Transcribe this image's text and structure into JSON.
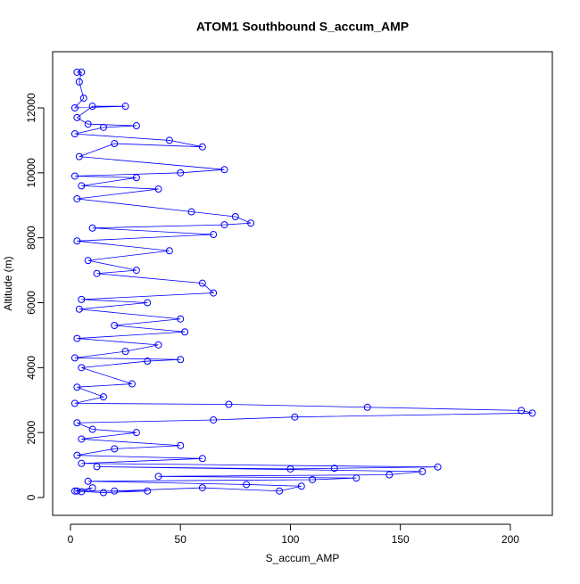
{
  "chart_data": {
    "type": "line",
    "title": "ATOM1 Southbound S_accum_AMP",
    "x_label": "S_accum_AMP",
    "y_label": "Altitude (m)",
    "xlim": [
      -8.1,
      219.1
    ],
    "ylim": [
      -549,
      13730
    ],
    "xticks": [
      0,
      50,
      100,
      150,
      200
    ],
    "yticks": [
      0,
      2000,
      4000,
      6000,
      8000,
      10000,
      12000
    ],
    "color": "#0000ff",
    "x": [
      3,
      5,
      4,
      6,
      2,
      25,
      10,
      3,
      8,
      30,
      15,
      2,
      45,
      60,
      20,
      4,
      70,
      50,
      2,
      30,
      5,
      40,
      3,
      55,
      75,
      82,
      70,
      10,
      65,
      3,
      45,
      8,
      30,
      12,
      60,
      65,
      5,
      35,
      4,
      50,
      20,
      52,
      3,
      40,
      25,
      2,
      50,
      35,
      5,
      28,
      3,
      15,
      2,
      72,
      135,
      205,
      210,
      102,
      65,
      3,
      10,
      30,
      5,
      50,
      20,
      3,
      60,
      5,
      167,
      120,
      100,
      12,
      160,
      145,
      40,
      130,
      110,
      8,
      80,
      105,
      95,
      60,
      20,
      3,
      35,
      15,
      2,
      10,
      5
    ],
    "y": [
      13100,
      13100,
      12800,
      12300,
      12000,
      12050,
      12050,
      11700,
      11500,
      11450,
      11400,
      11200,
      11000,
      10800,
      10900,
      10500,
      10100,
      10000,
      9900,
      9850,
      9600,
      9500,
      9200,
      8800,
      8650,
      8450,
      8400,
      8300,
      8100,
      7900,
      7600,
      7300,
      7000,
      6900,
      6600,
      6300,
      6100,
      6000,
      5800,
      5500,
      5300,
      5100,
      4900,
      4700,
      4500,
      4300,
      4250,
      4200,
      4000,
      3500,
      3400,
      3100,
      2900,
      2870,
      2780,
      2680,
      2600,
      2480,
      2390,
      2300,
      2100,
      2000,
      1800,
      1600,
      1500,
      1300,
      1200,
      1050,
      940,
      900,
      880,
      950,
      800,
      700,
      650,
      600,
      550,
      500,
      400,
      350,
      200,
      300,
      200,
      200,
      200,
      150,
      200,
      300,
      180
    ]
  }
}
